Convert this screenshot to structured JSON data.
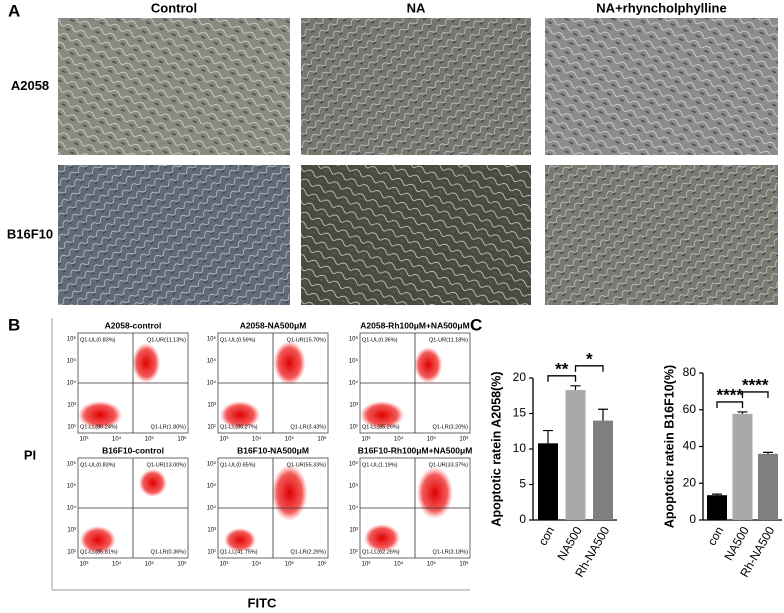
{
  "panel_labels": [
    "A",
    "B",
    "C"
  ],
  "micrographs": {
    "columns": [
      "Control",
      "NA",
      "NA+rhyncholphylline"
    ],
    "rows": [
      "A2058",
      "B16F10"
    ]
  },
  "flow": {
    "y_axis_label": "PI",
    "x_axis_label": "FITC",
    "xticks": [
      "10³",
      "10⁴",
      "10⁵",
      "10⁶"
    ],
    "yticks": [
      "10¹",
      "10³",
      "10⁴",
      "10⁵",
      "10⁶"
    ],
    "plots": [
      {
        "title": "A2058-control",
        "quadrants": {
          "UL": "Q1-UL(0.83%)",
          "UR": "Q1-UR(11.13%)",
          "LL": "Q1-LL(86.24%)",
          "LR": "Q1-LR(1.80%)"
        }
      },
      {
        "title": "A2058-NA500μM",
        "quadrants": {
          "UL": "Q1-UL(0.59%)",
          "UR": "Q1-UR(15.70%)",
          "LL": "Q1-LL(80.27%)",
          "LR": "Q1-LR(3.43%)"
        }
      },
      {
        "title": "A2058-Rh100μM+NA500μM",
        "quadrants": {
          "UL": "Q1-UL(0.36%)",
          "UR": "Q1-UR(11.18%)",
          "LL": "Q1-LL(85.26%)",
          "LR": "Q1-LR(3.20%)"
        }
      },
      {
        "title": "B16F10-control",
        "quadrants": {
          "UL": "Q1-UL(0.83%)",
          "UR": "Q1-UR(13.00%)",
          "LL": "Q1-LL(85.81%)",
          "LR": "Q1-LR(0.36%)"
        }
      },
      {
        "title": "B16F10-NA500μM",
        "quadrants": {
          "UL": "Q1-UL(0.65%)",
          "UR": "Q1-UR(55.33%)",
          "LL": "Q1-LL(41.75%)",
          "LR": "Q1-LR(2.26%)"
        }
      },
      {
        "title": "B16F10-Rh100μM+NA500μM",
        "quadrants": {
          "UL": "Q1-UL(1.19%)",
          "UR": "Q1-UR(33.37%)",
          "LL": "Q1-LL(62.26%)",
          "LR": "Q1-LR(3.18%)"
        }
      }
    ]
  },
  "chart_data": [
    {
      "type": "bar",
      "y_label": "Apoptotic ratein A2058(%)",
      "categories": [
        "con",
        "NA500",
        "Rh-NA500"
      ],
      "values": [
        10.8,
        18.3,
        14.0
      ],
      "errors": [
        1.8,
        0.6,
        1.6
      ],
      "colors": [
        "#000000",
        "#a9a9a9",
        "#7f7f7f"
      ],
      "ylim": [
        0,
        20
      ],
      "yticks": [
        0,
        5,
        10,
        15,
        20
      ],
      "annotations": [
        {
          "text": "**",
          "between": [
            "con",
            "NA500"
          ]
        },
        {
          "text": "*",
          "between": [
            "NA500",
            "Rh-NA500"
          ]
        }
      ]
    },
    {
      "type": "bar",
      "y_label": "Apoptotic ratein B16F10(%)",
      "categories": [
        "con",
        "NA500",
        "Rh-NA500"
      ],
      "values": [
        13.5,
        57.8,
        36.0
      ],
      "errors": [
        0.6,
        1.0,
        0.8
      ],
      "colors": [
        "#000000",
        "#a9a9a9",
        "#7f7f7f"
      ],
      "ylim": [
        0,
        80
      ],
      "yticks": [
        0,
        20,
        40,
        60,
        80
      ],
      "annotations": [
        {
          "text": "****",
          "between": [
            "con",
            "NA500"
          ]
        },
        {
          "text": "****",
          "between": [
            "NA500",
            "Rh-NA500"
          ]
        }
      ]
    }
  ]
}
